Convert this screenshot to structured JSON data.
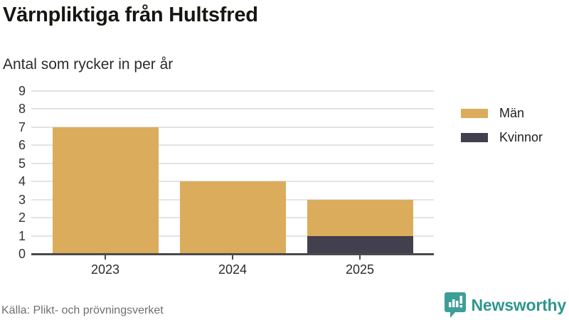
{
  "header": {
    "title": "Värnpliktiga från Hultsfred",
    "subtitle": "Antal som rycker in per år"
  },
  "legend": {
    "items": [
      {
        "label": "Män",
        "color": "#DBAC5C"
      },
      {
        "label": "Kvinnor",
        "color": "#423F4E"
      }
    ]
  },
  "chart_data": {
    "type": "bar",
    "stacked": true,
    "title": "Värnpliktiga från Hultsfred",
    "subtitle": "Antal som rycker in per år",
    "categories": [
      "2023",
      "2024",
      "2025"
    ],
    "series": [
      {
        "name": "Män",
        "color": "#DBAC5C",
        "values": [
          7,
          4,
          2
        ]
      },
      {
        "name": "Kvinnor",
        "color": "#423F4E",
        "values": [
          0,
          0,
          1
        ]
      }
    ],
    "totals": [
      7,
      4,
      3
    ],
    "xlabel": "",
    "ylabel": "",
    "ylim": [
      0,
      9
    ],
    "yticks": [
      0,
      1,
      2,
      3,
      4,
      5,
      6,
      7,
      8,
      9
    ],
    "grid": true,
    "legend_position": "right",
    "colors": {
      "gridline": "#e3e3e3",
      "axis": "#4a4a4a"
    }
  },
  "footer": {
    "source": "Källa: Plikt- och prövningsverket",
    "brand": "Newsworthy",
    "brand_color": "#2f968f"
  }
}
